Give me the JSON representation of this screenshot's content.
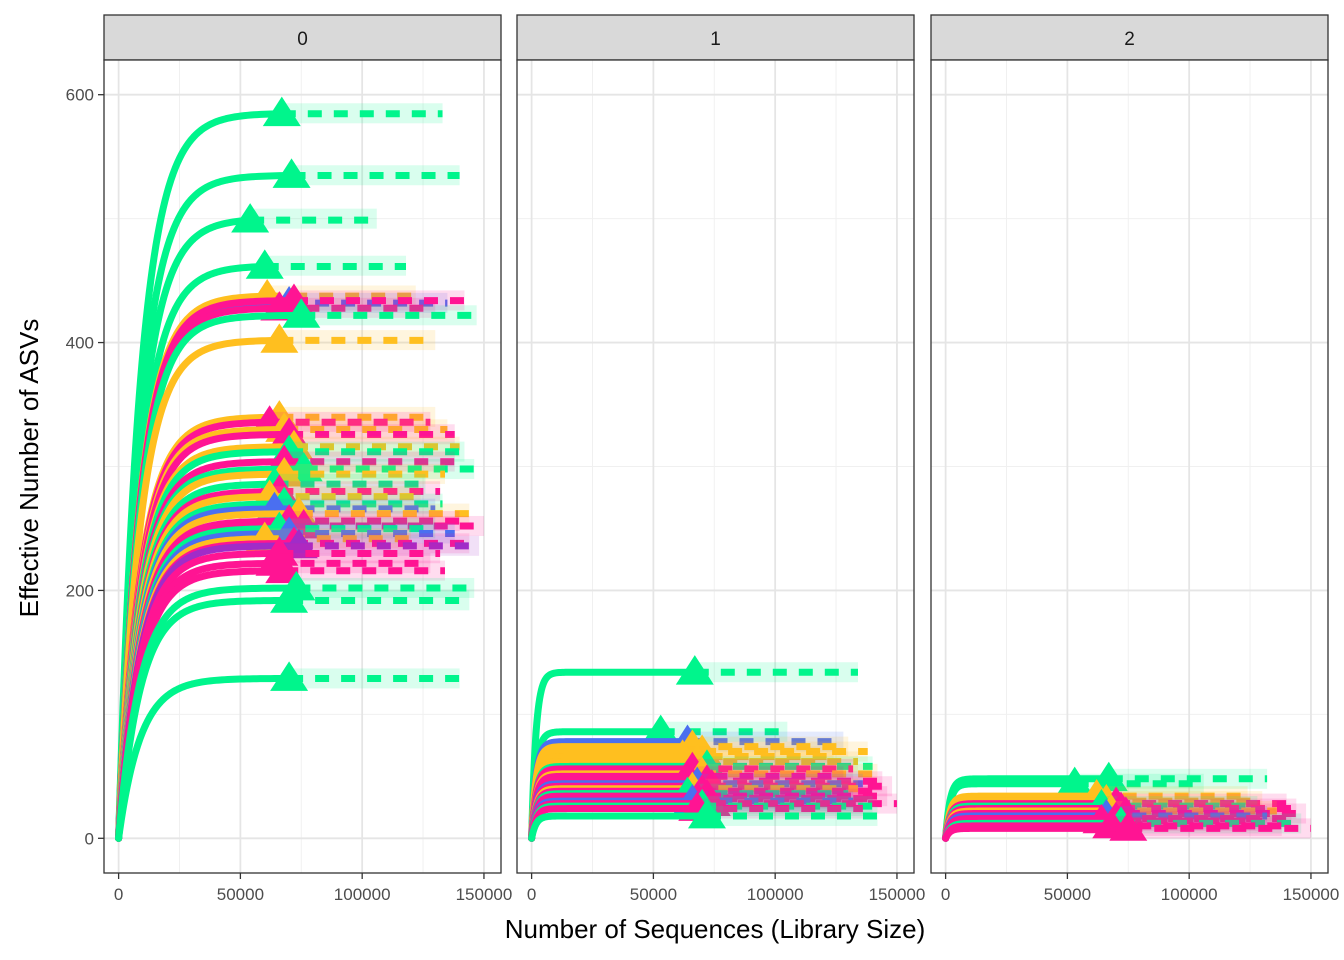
{
  "chart_data": {
    "type": "line",
    "facet_variable_values": [
      "0",
      "1",
      "2"
    ],
    "xlabel": "Number of Sequences (Library Size)",
    "ylabel": "Effective Number of ASVs",
    "x_ticks": [
      0,
      50000,
      100000,
      150000
    ],
    "x_tick_labels": [
      "0",
      "50000",
      "100000",
      "150000"
    ],
    "y_ticks": [
      0,
      200,
      400,
      600
    ],
    "y_tick_labels": [
      "0",
      "200",
      "400",
      "600"
    ],
    "xlim": [
      -6000,
      157000
    ],
    "ylim": [
      -28,
      628
    ],
    "grid": true,
    "legend": "none",
    "colors": {
      "green": "#00f58c",
      "gold": "#ffbf1f",
      "blue": "#4a6ff0",
      "pink": "#ff1493",
      "purple": "#a02cc8"
    },
    "facets": [
      {
        "label": "0",
        "curves": [
          {
            "color": "green",
            "asymptote": 585,
            "sample_size": 67000,
            "max_x": 133000,
            "marker": "triangle"
          },
          {
            "color": "green",
            "asymptote": 535,
            "sample_size": 71000,
            "max_x": 140000,
            "marker": "triangle"
          },
          {
            "color": "green",
            "asymptote": 500,
            "sample_size": 54000,
            "max_x": 106000,
            "marker": "triangle"
          },
          {
            "color": "green",
            "asymptote": 462,
            "sample_size": 60000,
            "max_x": 118000,
            "marker": "triangle"
          },
          {
            "color": "gold",
            "asymptote": 438,
            "sample_size": 61000,
            "max_x": 122000,
            "marker": "triangle"
          },
          {
            "color": "blue",
            "asymptote": 432,
            "sample_size": 70000,
            "max_x": 135000,
            "marker": "triangle"
          },
          {
            "color": "pink",
            "asymptote": 434,
            "sample_size": 72000,
            "max_x": 142000,
            "marker": "triangle"
          },
          {
            "color": "pink",
            "asymptote": 428,
            "sample_size": 66000,
            "max_x": 130000,
            "marker": "triangle"
          },
          {
            "color": "green",
            "asymptote": 422,
            "sample_size": 75000,
            "max_x": 147000,
            "marker": "triangle"
          },
          {
            "color": "gold",
            "asymptote": 402,
            "sample_size": 66000,
            "max_x": 130000,
            "marker": "triangle"
          },
          {
            "color": "gold",
            "asymptote": 340,
            "sample_size": 66000,
            "max_x": 130000,
            "marker": "triangle"
          },
          {
            "color": "pink",
            "asymptote": 336,
            "sample_size": 62000,
            "max_x": 128000,
            "marker": "triangle"
          },
          {
            "color": "gold",
            "asymptote": 330,
            "sample_size": 68000,
            "max_x": 135000,
            "marker": "triangle"
          },
          {
            "color": "pink",
            "asymptote": 326,
            "sample_size": 70000,
            "max_x": 138000,
            "marker": "triangle"
          },
          {
            "color": "gold",
            "asymptote": 316,
            "sample_size": 72000,
            "max_x": 140000,
            "marker": "triangle"
          },
          {
            "color": "green",
            "asymptote": 312,
            "sample_size": 70000,
            "max_x": 142000,
            "marker": "triangle"
          },
          {
            "color": "pink",
            "asymptote": 304,
            "sample_size": 68000,
            "max_x": 138000,
            "marker": "triangle"
          },
          {
            "color": "green",
            "asymptote": 298,
            "sample_size": 76000,
            "max_x": 146000,
            "marker": "triangle"
          },
          {
            "color": "gold",
            "asymptote": 294,
            "sample_size": 68000,
            "max_x": 134000,
            "marker": "triangle"
          },
          {
            "color": "green",
            "asymptote": 286,
            "sample_size": 64000,
            "max_x": 126000,
            "marker": "triangle"
          },
          {
            "color": "pink",
            "asymptote": 280,
            "sample_size": 66000,
            "max_x": 132000,
            "marker": "triangle"
          },
          {
            "color": "gold",
            "asymptote": 276,
            "sample_size": 62000,
            "max_x": 124000,
            "marker": "triangle"
          },
          {
            "color": "green",
            "asymptote": 270,
            "sample_size": 68000,
            "max_x": 133000,
            "marker": "triangle"
          },
          {
            "color": "blue",
            "asymptote": 266,
            "sample_size": 64000,
            "max_x": 130000,
            "marker": "triangle"
          },
          {
            "color": "gold",
            "asymptote": 262,
            "sample_size": 74000,
            "max_x": 144000,
            "marker": "triangle"
          },
          {
            "color": "pink",
            "asymptote": 256,
            "sample_size": 70000,
            "max_x": 140000,
            "marker": "triangle"
          },
          {
            "color": "pink",
            "asymptote": 252,
            "sample_size": 76000,
            "max_x": 150000,
            "marker": "triangle"
          },
          {
            "color": "green",
            "asymptote": 250,
            "sample_size": 66000,
            "max_x": 130000,
            "marker": "triangle"
          },
          {
            "color": "blue",
            "asymptote": 246,
            "sample_size": 70000,
            "max_x": 138000,
            "marker": "triangle"
          },
          {
            "color": "gold",
            "asymptote": 242,
            "sample_size": 60000,
            "max_x": 120000,
            "marker": "triangle"
          },
          {
            "color": "pink",
            "asymptote": 238,
            "sample_size": 72000,
            "max_x": 144000,
            "marker": "triangle"
          },
          {
            "color": "purple",
            "asymptote": 236,
            "sample_size": 74000,
            "max_x": 148000,
            "marker": "triangle"
          },
          {
            "color": "pink",
            "asymptote": 230,
            "sample_size": 66000,
            "max_x": 132000,
            "marker": "triangle"
          },
          {
            "color": "pink",
            "asymptote": 222,
            "sample_size": 64000,
            "max_x": 128000,
            "marker": "triangle"
          },
          {
            "color": "pink",
            "asymptote": 216,
            "sample_size": 68000,
            "max_x": 134000,
            "marker": "triangle"
          },
          {
            "color": "green",
            "asymptote": 202,
            "sample_size": 73000,
            "max_x": 146000,
            "marker": "triangle"
          },
          {
            "color": "green",
            "asymptote": 192,
            "sample_size": 70000,
            "max_x": 144000,
            "marker": "triangle"
          },
          {
            "color": "green",
            "asymptote": 129,
            "sample_size": 70000,
            "max_x": 140000,
            "marker": "triangle"
          }
        ]
      },
      {
        "label": "1",
        "curves": [
          {
            "color": "green",
            "asymptote": 134,
            "sample_size": 67000,
            "max_x": 134000,
            "marker": "triangle"
          },
          {
            "color": "green",
            "asymptote": 86,
            "sample_size": 53000,
            "max_x": 105000,
            "marker": "triangle"
          },
          {
            "color": "blue",
            "asymptote": 78,
            "sample_size": 64000,
            "max_x": 128000,
            "marker": "triangle"
          },
          {
            "color": "gold",
            "asymptote": 74,
            "sample_size": 66000,
            "max_x": 130000,
            "marker": "triangle"
          },
          {
            "color": "gold",
            "asymptote": 70,
            "sample_size": 70000,
            "max_x": 138000,
            "marker": "triangle"
          },
          {
            "color": "gold",
            "asymptote": 66,
            "sample_size": 62000,
            "max_x": 124000,
            "marker": "triangle"
          },
          {
            "color": "gold",
            "asymptote": 62,
            "sample_size": 68000,
            "max_x": 134000,
            "marker": "triangle"
          },
          {
            "color": "green",
            "asymptote": 58,
            "sample_size": 72000,
            "max_x": 140000,
            "marker": "triangle"
          },
          {
            "color": "pink",
            "asymptote": 56,
            "sample_size": 66000,
            "max_x": 132000,
            "marker": "triangle"
          },
          {
            "color": "gold",
            "asymptote": 52,
            "sample_size": 70000,
            "max_x": 142000,
            "marker": "triangle"
          },
          {
            "color": "pink",
            "asymptote": 50,
            "sample_size": 64000,
            "max_x": 128000,
            "marker": "triangle"
          },
          {
            "color": "pink",
            "asymptote": 46,
            "sample_size": 72000,
            "max_x": 144000,
            "marker": "triangle"
          },
          {
            "color": "blue",
            "asymptote": 44,
            "sample_size": 68000,
            "max_x": 136000,
            "marker": "triangle"
          },
          {
            "color": "pink",
            "asymptote": 42,
            "sample_size": 74000,
            "max_x": 148000,
            "marker": "triangle"
          },
          {
            "color": "gold",
            "asymptote": 40,
            "sample_size": 66000,
            "max_x": 134000,
            "marker": "triangle"
          },
          {
            "color": "pink",
            "asymptote": 38,
            "sample_size": 70000,
            "max_x": 140000,
            "marker": "triangle"
          },
          {
            "color": "green",
            "asymptote": 36,
            "sample_size": 64000,
            "max_x": 130000,
            "marker": "triangle"
          },
          {
            "color": "pink",
            "asymptote": 34,
            "sample_size": 72000,
            "max_x": 146000,
            "marker": "triangle"
          },
          {
            "color": "pink",
            "asymptote": 32,
            "sample_size": 68000,
            "max_x": 138000,
            "marker": "triangle"
          },
          {
            "color": "blue",
            "asymptote": 30,
            "sample_size": 66000,
            "max_x": 132000,
            "marker": "triangle"
          },
          {
            "color": "pink",
            "asymptote": 28,
            "sample_size": 74000,
            "max_x": 150000,
            "marker": "triangle"
          },
          {
            "color": "green",
            "asymptote": 26,
            "sample_size": 70000,
            "max_x": 140000,
            "marker": "triangle"
          },
          {
            "color": "pink",
            "asymptote": 24,
            "sample_size": 68000,
            "max_x": 136000,
            "marker": "triangle"
          },
          {
            "color": "green",
            "asymptote": 18,
            "sample_size": 72000,
            "max_x": 142000,
            "marker": "triangle"
          }
        ]
      },
      {
        "label": "2",
        "curves": [
          {
            "color": "green",
            "asymptote": 48,
            "sample_size": 67000,
            "max_x": 132000,
            "marker": "triangle"
          },
          {
            "color": "green",
            "asymptote": 44,
            "sample_size": 53000,
            "max_x": 106000,
            "marker": "triangle"
          },
          {
            "color": "gold",
            "asymptote": 34,
            "sample_size": 62000,
            "max_x": 124000,
            "marker": "triangle"
          },
          {
            "color": "gold",
            "asymptote": 30,
            "sample_size": 66000,
            "max_x": 130000,
            "marker": "triangle"
          },
          {
            "color": "pink",
            "asymptote": 28,
            "sample_size": 70000,
            "max_x": 140000,
            "marker": "triangle"
          },
          {
            "color": "green",
            "asymptote": 26,
            "sample_size": 64000,
            "max_x": 128000,
            "marker": "triangle"
          },
          {
            "color": "pink",
            "asymptote": 24,
            "sample_size": 72000,
            "max_x": 144000,
            "marker": "triangle"
          },
          {
            "color": "gold",
            "asymptote": 22,
            "sample_size": 68000,
            "max_x": 136000,
            "marker": "triangle"
          },
          {
            "color": "pink",
            "asymptote": 20,
            "sample_size": 74000,
            "max_x": 148000,
            "marker": "triangle"
          },
          {
            "color": "blue",
            "asymptote": 18,
            "sample_size": 66000,
            "max_x": 132000,
            "marker": "triangle"
          },
          {
            "color": "pink",
            "asymptote": 16,
            "sample_size": 70000,
            "max_x": 142000,
            "marker": "triangle"
          },
          {
            "color": "pink",
            "asymptote": 14,
            "sample_size": 64000,
            "max_x": 130000,
            "marker": "triangle"
          },
          {
            "color": "green",
            "asymptote": 12,
            "sample_size": 72000,
            "max_x": 146000,
            "marker": "triangle"
          },
          {
            "color": "pink",
            "asymptote": 10,
            "sample_size": 68000,
            "max_x": 138000,
            "marker": "triangle"
          },
          {
            "color": "pink",
            "asymptote": 8,
            "sample_size": 75000,
            "max_x": 150000,
            "marker": "triangle"
          }
        ]
      }
    ]
  }
}
